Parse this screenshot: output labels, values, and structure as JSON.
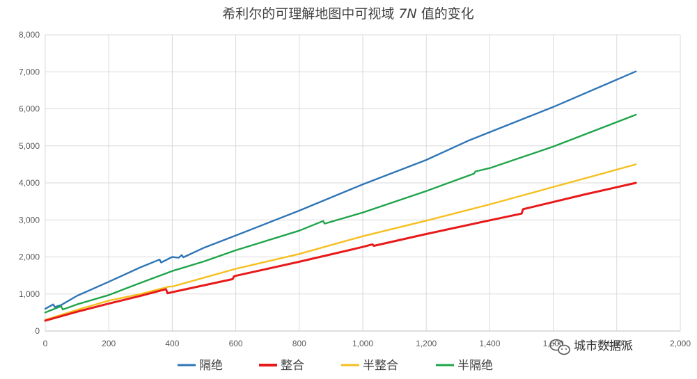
{
  "chart_data": {
    "type": "line",
    "title_main": "希利尔的可理解地图中可视域",
    "title_var": "7N",
    "title_tail": "值的变化",
    "xlabel": "",
    "ylabel": "",
    "xlim": [
      0,
      2000
    ],
    "ylim": [
      0,
      8000
    ],
    "x_ticks": [
      0,
      200,
      400,
      600,
      800,
      1000,
      1200,
      1400,
      1600,
      1800,
      2000
    ],
    "x_tick_labels": [
      "0",
      "200",
      "400",
      "600",
      "800",
      "1,000",
      "1,200",
      "1,400",
      "1,600",
      "1,800",
      "2,000"
    ],
    "y_ticks": [
      0,
      1000,
      2000,
      3000,
      4000,
      5000,
      6000,
      7000,
      8000
    ],
    "y_tick_labels": [
      "0",
      "1,000",
      "2,000",
      "3,000",
      "4,000",
      "5,000",
      "6,000",
      "7,000",
      "8,000"
    ],
    "grid": true,
    "legend_position": "bottom",
    "series": [
      {
        "name": "隔绝",
        "color": "#2E75B6",
        "points": [
          [
            0,
            600
          ],
          [
            25,
            720
          ],
          [
            30,
            650
          ],
          [
            50,
            700
          ],
          [
            100,
            950
          ],
          [
            200,
            1330
          ],
          [
            300,
            1720
          ],
          [
            360,
            1930
          ],
          [
            365,
            1850
          ],
          [
            400,
            2000
          ],
          [
            420,
            1980
          ],
          [
            430,
            2050
          ],
          [
            435,
            1990
          ],
          [
            500,
            2250
          ],
          [
            600,
            2580
          ],
          [
            800,
            3250
          ],
          [
            1000,
            3960
          ],
          [
            1200,
            4620
          ],
          [
            1330,
            5130
          ],
          [
            1400,
            5370
          ],
          [
            1600,
            6050
          ],
          [
            1860,
            7010
          ]
        ]
      },
      {
        "name": "整合",
        "color": "#E81919",
        "points": [
          [
            0,
            280
          ],
          [
            100,
            520
          ],
          [
            200,
            740
          ],
          [
            300,
            950
          ],
          [
            380,
            1130
          ],
          [
            385,
            1020
          ],
          [
            400,
            1050
          ],
          [
            590,
            1400
          ],
          [
            595,
            1480
          ],
          [
            605,
            1500
          ],
          [
            800,
            1870
          ],
          [
            1000,
            2270
          ],
          [
            1030,
            2340
          ],
          [
            1035,
            2300
          ],
          [
            1200,
            2620
          ],
          [
            1400,
            2990
          ],
          [
            1500,
            3170
          ],
          [
            1505,
            3290
          ],
          [
            1700,
            3690
          ],
          [
            1860,
            4000
          ]
        ]
      },
      {
        "name": "半整合",
        "color": "#F5BF1E",
        "points": [
          [
            0,
            300
          ],
          [
            100,
            570
          ],
          [
            200,
            820
          ],
          [
            300,
            1000
          ],
          [
            390,
            1200
          ],
          [
            400,
            1200
          ],
          [
            500,
            1440
          ],
          [
            600,
            1680
          ],
          [
            800,
            2080
          ],
          [
            1000,
            2560
          ],
          [
            1200,
            2980
          ],
          [
            1400,
            3420
          ],
          [
            1600,
            3890
          ],
          [
            1860,
            4500
          ]
        ]
      },
      {
        "name": "半隔绝",
        "color": "#1FA44A",
        "points": [
          [
            0,
            500
          ],
          [
            50,
            670
          ],
          [
            55,
            580
          ],
          [
            100,
            720
          ],
          [
            200,
            970
          ],
          [
            300,
            1300
          ],
          [
            400,
            1620
          ],
          [
            500,
            1880
          ],
          [
            600,
            2180
          ],
          [
            800,
            2710
          ],
          [
            875,
            2970
          ],
          [
            880,
            2900
          ],
          [
            1000,
            3200
          ],
          [
            1200,
            3780
          ],
          [
            1350,
            4250
          ],
          [
            1355,
            4310
          ],
          [
            1400,
            4400
          ],
          [
            1600,
            4980
          ],
          [
            1860,
            5840
          ]
        ]
      }
    ]
  },
  "watermark": {
    "text": "城市数据派"
  }
}
